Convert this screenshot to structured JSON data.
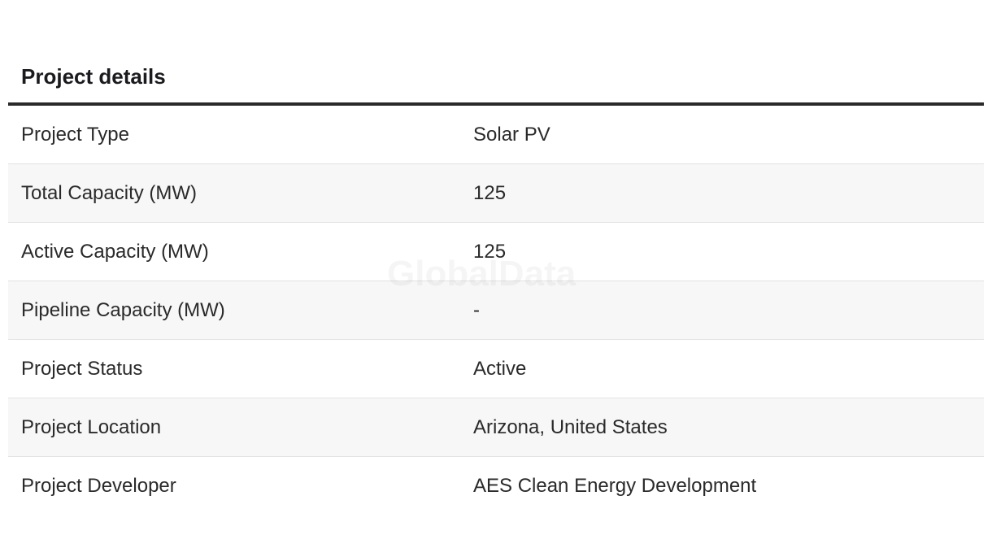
{
  "section": {
    "title": "Project details"
  },
  "rows": [
    {
      "label": "Project Type",
      "value": "Solar PV"
    },
    {
      "label": "Total Capacity (MW)",
      "value": "125"
    },
    {
      "label": "Active Capacity (MW)",
      "value": "125"
    },
    {
      "label": "Pipeline Capacity (MW)",
      "value": "-"
    },
    {
      "label": "Project Status",
      "value": "Active"
    },
    {
      "label": "Project Location",
      "value": "Arizona, United States"
    },
    {
      "label": "Project Developer",
      "value": "AES Clean Energy Development"
    }
  ],
  "watermark": "GlobalData"
}
